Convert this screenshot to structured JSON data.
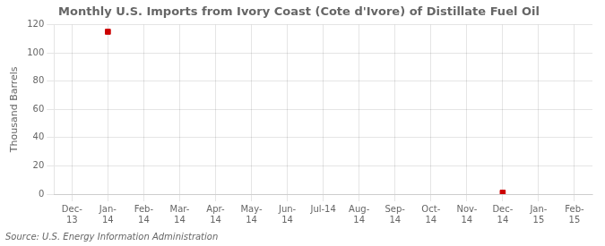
{
  "chart_data": {
    "type": "line",
    "title": "Monthly U.S. Imports from Ivory Coast (Cote d'Ivore) of Distillate Fuel Oil",
    "y_label": "Thousand Barrels",
    "annotations": [
      "Source: U.S. Energy Information Administration"
    ],
    "categories": [
      "Dec-\n13",
      "Jan-\n14",
      "Feb-\n14",
      "Mar-\n14",
      "Apr-\n14",
      "May-\n14",
      "Jun-\n14",
      "Jul-14",
      "Aug-\n14",
      "Sep-\n14",
      "Oct-\n14",
      "Nov-\n14",
      "Dec-\n14",
      "Jan-\n15",
      "Feb-\n15"
    ],
    "values": [
      null,
      115,
      null,
      null,
      null,
      null,
      null,
      null,
      null,
      null,
      null,
      null,
      1,
      null,
      null
    ],
    "color": "#cc0000",
    "marker": "square",
    "line_style": "none",
    "ylim": [
      0,
      120
    ],
    "yticks": [
      0,
      20,
      40,
      60,
      80,
      100,
      120
    ],
    "grid": true,
    "legend": false
  }
}
